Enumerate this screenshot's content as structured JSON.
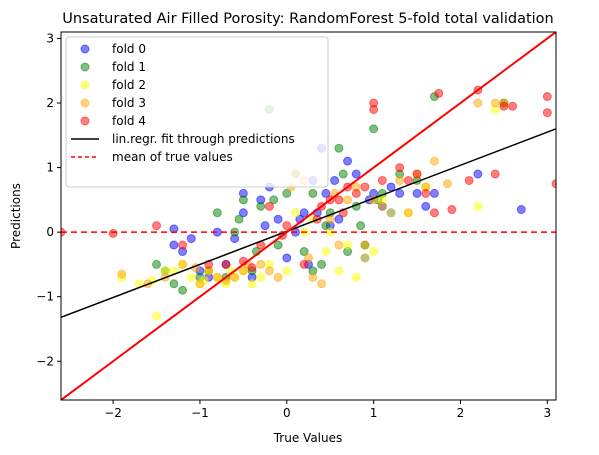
{
  "chart_data": {
    "type": "scatter",
    "title": "Unsaturated Air Filled Porosity: RandomForest 5-fold total validation",
    "xlabel": "True Values",
    "ylabel": "Predictions",
    "xlim": [
      -2.6,
      3.1
    ],
    "ylim": [
      -2.6,
      3.1
    ],
    "xticks": [
      -2,
      -1,
      0,
      1,
      2,
      3
    ],
    "yticks": [
      -2,
      -1,
      0,
      1,
      2,
      3
    ],
    "xtick_labels": [
      "−2",
      "−1",
      "0",
      "1",
      "2",
      "3"
    ],
    "ytick_labels": [
      "−2",
      "−1",
      "0",
      "1",
      "2",
      "3"
    ],
    "legend_position": "top-left",
    "series": [
      {
        "name": "fold 0",
        "color": "#0000ff",
        "points": [
          [
            -1.3,
            -0.2
          ],
          [
            -1.2,
            -0.3
          ],
          [
            -1.0,
            -0.6
          ],
          [
            -0.9,
            -0.7
          ],
          [
            -0.8,
            0.0
          ],
          [
            -0.6,
            -0.1
          ],
          [
            -0.5,
            0.3
          ],
          [
            -0.4,
            -0.7
          ],
          [
            -0.3,
            0.5
          ],
          [
            -0.2,
            0.7
          ],
          [
            -0.1,
            0.2
          ],
          [
            0.0,
            -0.4
          ],
          [
            0.1,
            0.0
          ],
          [
            0.2,
            0.3
          ],
          [
            0.3,
            0.8
          ],
          [
            0.4,
            1.3
          ],
          [
            0.5,
            0.1
          ],
          [
            0.6,
            0.2
          ],
          [
            0.7,
            1.1
          ],
          [
            0.8,
            0.9
          ],
          [
            0.9,
            -0.4
          ],
          [
            1.0,
            0.6
          ],
          [
            1.1,
            0.4
          ],
          [
            1.2,
            0.3
          ],
          [
            1.3,
            0.6
          ],
          [
            1.5,
            0.6
          ],
          [
            1.6,
            0.4
          ],
          [
            1.7,
            0.6
          ],
          [
            2.2,
            0.9
          ],
          [
            2.7,
            0.35
          ],
          [
            -1.1,
            -0.1
          ],
          [
            -0.7,
            -0.5
          ],
          [
            0.35,
            0.3
          ],
          [
            -0.25,
            0.1
          ],
          [
            0.15,
            0.2
          ],
          [
            -1.3,
            0.05
          ],
          [
            -0.5,
            0.6
          ],
          [
            1.2,
            0.7
          ],
          [
            0.95,
            0.5
          ],
          [
            0.55,
            0.8
          ],
          [
            0.45,
            0.6
          ],
          [
            0.25,
            -0.5
          ]
        ]
      },
      {
        "name": "fold 1",
        "color": "#008000",
        "points": [
          [
            -1.4,
            -0.6
          ],
          [
            -1.3,
            -0.8
          ],
          [
            -1.2,
            -0.9
          ],
          [
            -1.0,
            -0.7
          ],
          [
            -0.8,
            0.3
          ],
          [
            -0.6,
            0.0
          ],
          [
            -0.5,
            0.5
          ],
          [
            -0.4,
            -0.6
          ],
          [
            -0.3,
            0.4
          ],
          [
            -0.2,
            1.9
          ],
          [
            -0.1,
            -0.2
          ],
          [
            0.0,
            0.6
          ],
          [
            0.1,
            0.9
          ],
          [
            0.2,
            -0.3
          ],
          [
            0.3,
            0.6
          ],
          [
            0.4,
            -0.5
          ],
          [
            0.5,
            0.3
          ],
          [
            0.6,
            1.3
          ],
          [
            0.7,
            -0.3
          ],
          [
            0.8,
            0.4
          ],
          [
            0.9,
            -0.2
          ],
          [
            1.0,
            1.6
          ],
          [
            1.1,
            0.6
          ],
          [
            1.3,
            0.9
          ],
          [
            1.5,
            0.8
          ],
          [
            1.7,
            2.1
          ],
          [
            2.5,
            2.0
          ],
          [
            -0.7,
            -0.7
          ],
          [
            -0.9,
            -0.6
          ],
          [
            -0.35,
            -0.3
          ],
          [
            0.45,
            0.1
          ],
          [
            0.65,
            0.9
          ],
          [
            1.05,
            0.5
          ],
          [
            -1.5,
            -0.5
          ],
          [
            0.3,
            -0.6
          ],
          [
            0.85,
            0.1
          ],
          [
            -0.55,
            0.2
          ],
          [
            -0.15,
            0.5
          ]
        ]
      },
      {
        "name": "fold 2",
        "color": "#ffff00",
        "points": [
          [
            -1.9,
            -0.7
          ],
          [
            -1.7,
            -0.8
          ],
          [
            -1.5,
            -1.3
          ],
          [
            -1.4,
            -0.6
          ],
          [
            -1.2,
            -0.5
          ],
          [
            -1.0,
            -0.8
          ],
          [
            -0.9,
            -0.6
          ],
          [
            -0.8,
            -0.7
          ],
          [
            -0.7,
            -0.8
          ],
          [
            -0.6,
            -0.7
          ],
          [
            -0.5,
            -0.6
          ],
          [
            -0.4,
            -0.8
          ],
          [
            -0.3,
            -0.7
          ],
          [
            -0.2,
            -0.5
          ],
          [
            0.0,
            -0.6
          ],
          [
            0.1,
            0.3
          ],
          [
            0.2,
            0.0
          ],
          [
            0.3,
            0.2
          ],
          [
            0.5,
            0.0
          ],
          [
            0.6,
            -0.6
          ],
          [
            0.8,
            -0.7
          ],
          [
            0.9,
            -0.4
          ],
          [
            1.0,
            -0.3
          ],
          [
            1.2,
            0.3
          ],
          [
            1.4,
            0.3
          ],
          [
            1.6,
            0.7
          ],
          [
            2.2,
            0.4
          ],
          [
            2.4,
            1.9
          ],
          [
            -1.3,
            -0.6
          ],
          [
            -1.1,
            -0.7
          ],
          [
            -0.95,
            -0.75
          ],
          [
            -0.65,
            -0.6
          ],
          [
            0.7,
            -0.2
          ],
          [
            1.1,
            0.5
          ],
          [
            -1.55,
            -0.75
          ],
          [
            0.45,
            -0.3
          ]
        ]
      },
      {
        "name": "fold 3",
        "color": "#ffa500",
        "points": [
          [
            -1.9,
            -0.65
          ],
          [
            -1.6,
            -0.8
          ],
          [
            -1.4,
            -0.7
          ],
          [
            -1.2,
            -0.5
          ],
          [
            -1.0,
            -0.8
          ],
          [
            -0.8,
            -0.7
          ],
          [
            -0.7,
            -0.75
          ],
          [
            -0.6,
            -0.7
          ],
          [
            -0.5,
            -0.6
          ],
          [
            -0.3,
            -0.5
          ],
          [
            -0.2,
            -0.6
          ],
          [
            -0.1,
            -0.7
          ],
          [
            0.1,
            0.9
          ],
          [
            0.2,
            0.8
          ],
          [
            0.3,
            -0.7
          ],
          [
            0.4,
            -0.8
          ],
          [
            0.5,
            0.2
          ],
          [
            0.6,
            -0.2
          ],
          [
            0.7,
            0.5
          ],
          [
            0.8,
            0.7
          ],
          [
            0.9,
            -0.2
          ],
          [
            1.1,
            0.4
          ],
          [
            1.3,
            0.8
          ],
          [
            1.4,
            0.3
          ],
          [
            1.5,
            0.9
          ],
          [
            1.6,
            0.7
          ],
          [
            1.7,
            1.1
          ],
          [
            2.2,
            2.0
          ],
          [
            2.4,
            2.0
          ],
          [
            2.5,
            2.0
          ],
          [
            -0.9,
            -0.6
          ],
          [
            -0.45,
            -0.5
          ],
          [
            0.05,
            0.7
          ],
          [
            0.55,
            0.6
          ],
          [
            1.0,
            0.5
          ],
          [
            -1.05,
            -0.55
          ],
          [
            0.25,
            -0.4
          ],
          [
            1.85,
            0.75
          ]
        ]
      },
      {
        "name": "fold 4",
        "color": "#ff0000",
        "points": [
          [
            -2.6,
            0.0
          ],
          [
            -2.0,
            -0.02
          ],
          [
            -1.5,
            0.1
          ],
          [
            -1.2,
            -0.2
          ],
          [
            -0.9,
            -0.5
          ],
          [
            -0.7,
            -0.5
          ],
          [
            -0.5,
            -0.45
          ],
          [
            -0.3,
            -0.2
          ],
          [
            -0.2,
            0.4
          ],
          [
            0.0,
            0.1
          ],
          [
            0.2,
            -0.5
          ],
          [
            0.4,
            0.4
          ],
          [
            0.5,
            0.5
          ],
          [
            0.6,
            0.5
          ],
          [
            0.7,
            0.7
          ],
          [
            0.8,
            0.6
          ],
          [
            0.9,
            0.7
          ],
          [
            1.0,
            1.9
          ],
          [
            1.0,
            2.0
          ],
          [
            1.1,
            0.8
          ],
          [
            1.3,
            1.0
          ],
          [
            1.4,
            0.8
          ],
          [
            1.5,
            0.9
          ],
          [
            1.6,
            0.6
          ],
          [
            1.7,
            0.3
          ],
          [
            1.75,
            2.15
          ],
          [
            1.9,
            0.35
          ],
          [
            2.1,
            0.8
          ],
          [
            2.2,
            2.2
          ],
          [
            2.4,
            0.9
          ],
          [
            2.5,
            1.95
          ],
          [
            2.6,
            1.95
          ],
          [
            3.0,
            1.85
          ],
          [
            3.0,
            2.1
          ],
          [
            3.1,
            0.75
          ],
          [
            -0.05,
            -0.05
          ],
          [
            0.35,
            0.2
          ],
          [
            0.65,
            0.3
          ],
          [
            -0.4,
            -0.55
          ]
        ]
      }
    ],
    "lines": [
      {
        "name": "lin.regr. fit through predictions",
        "color": "#000000",
        "style": "solid",
        "x": [
          -2.6,
          3.1
        ],
        "y": [
          -1.32,
          1.6
        ]
      },
      {
        "name": "mean of true values",
        "color": "#ff0000",
        "style": "dashed",
        "x": [
          -2.6,
          3.1
        ],
        "y": [
          0.0,
          0.0
        ]
      },
      {
        "name": "",
        "color": "#ff0000",
        "style": "solid",
        "x": [
          -2.6,
          3.1
        ],
        "y": [
          -2.6,
          3.1
        ]
      }
    ]
  }
}
